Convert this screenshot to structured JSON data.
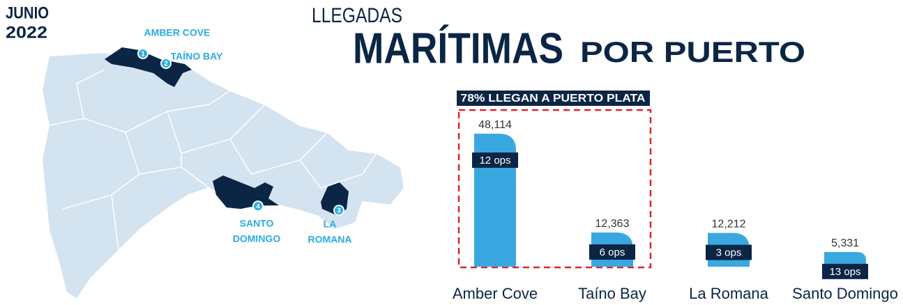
{
  "header": {
    "date": [
      "JUNIO",
      "2022"
    ],
    "title_small": "LLEGADAS",
    "title_big": "MARÍTIMAS",
    "title_rest": "POR PUERTO"
  },
  "map": {
    "markers": [
      {
        "number": "1",
        "label": [
          "AMBER COVE"
        ]
      },
      {
        "number": "2",
        "label": [
          "TAÍNO BAY"
        ]
      },
      {
        "number": "3",
        "label": [
          "LA",
          "ROMANA"
        ]
      },
      {
        "number": "4",
        "label": [
          "SANTO",
          "DOMINGO"
        ]
      }
    ]
  },
  "chart_data": {
    "type": "bar",
    "annotation": "78% LLEGAN A PUERTO PLATA",
    "categories": [
      "Amber Cove",
      "Taíno Bay",
      "La Romana",
      "Santo Domingo"
    ],
    "values": [
      48114,
      12363,
      12212,
      5331
    ],
    "value_labels": [
      "48,114",
      "12,363",
      "12,212",
      "5,331"
    ],
    "operations": [
      "12 ops",
      "6 ops",
      "3 ops",
      "13 ops"
    ],
    "color": "#3aa8e0"
  }
}
